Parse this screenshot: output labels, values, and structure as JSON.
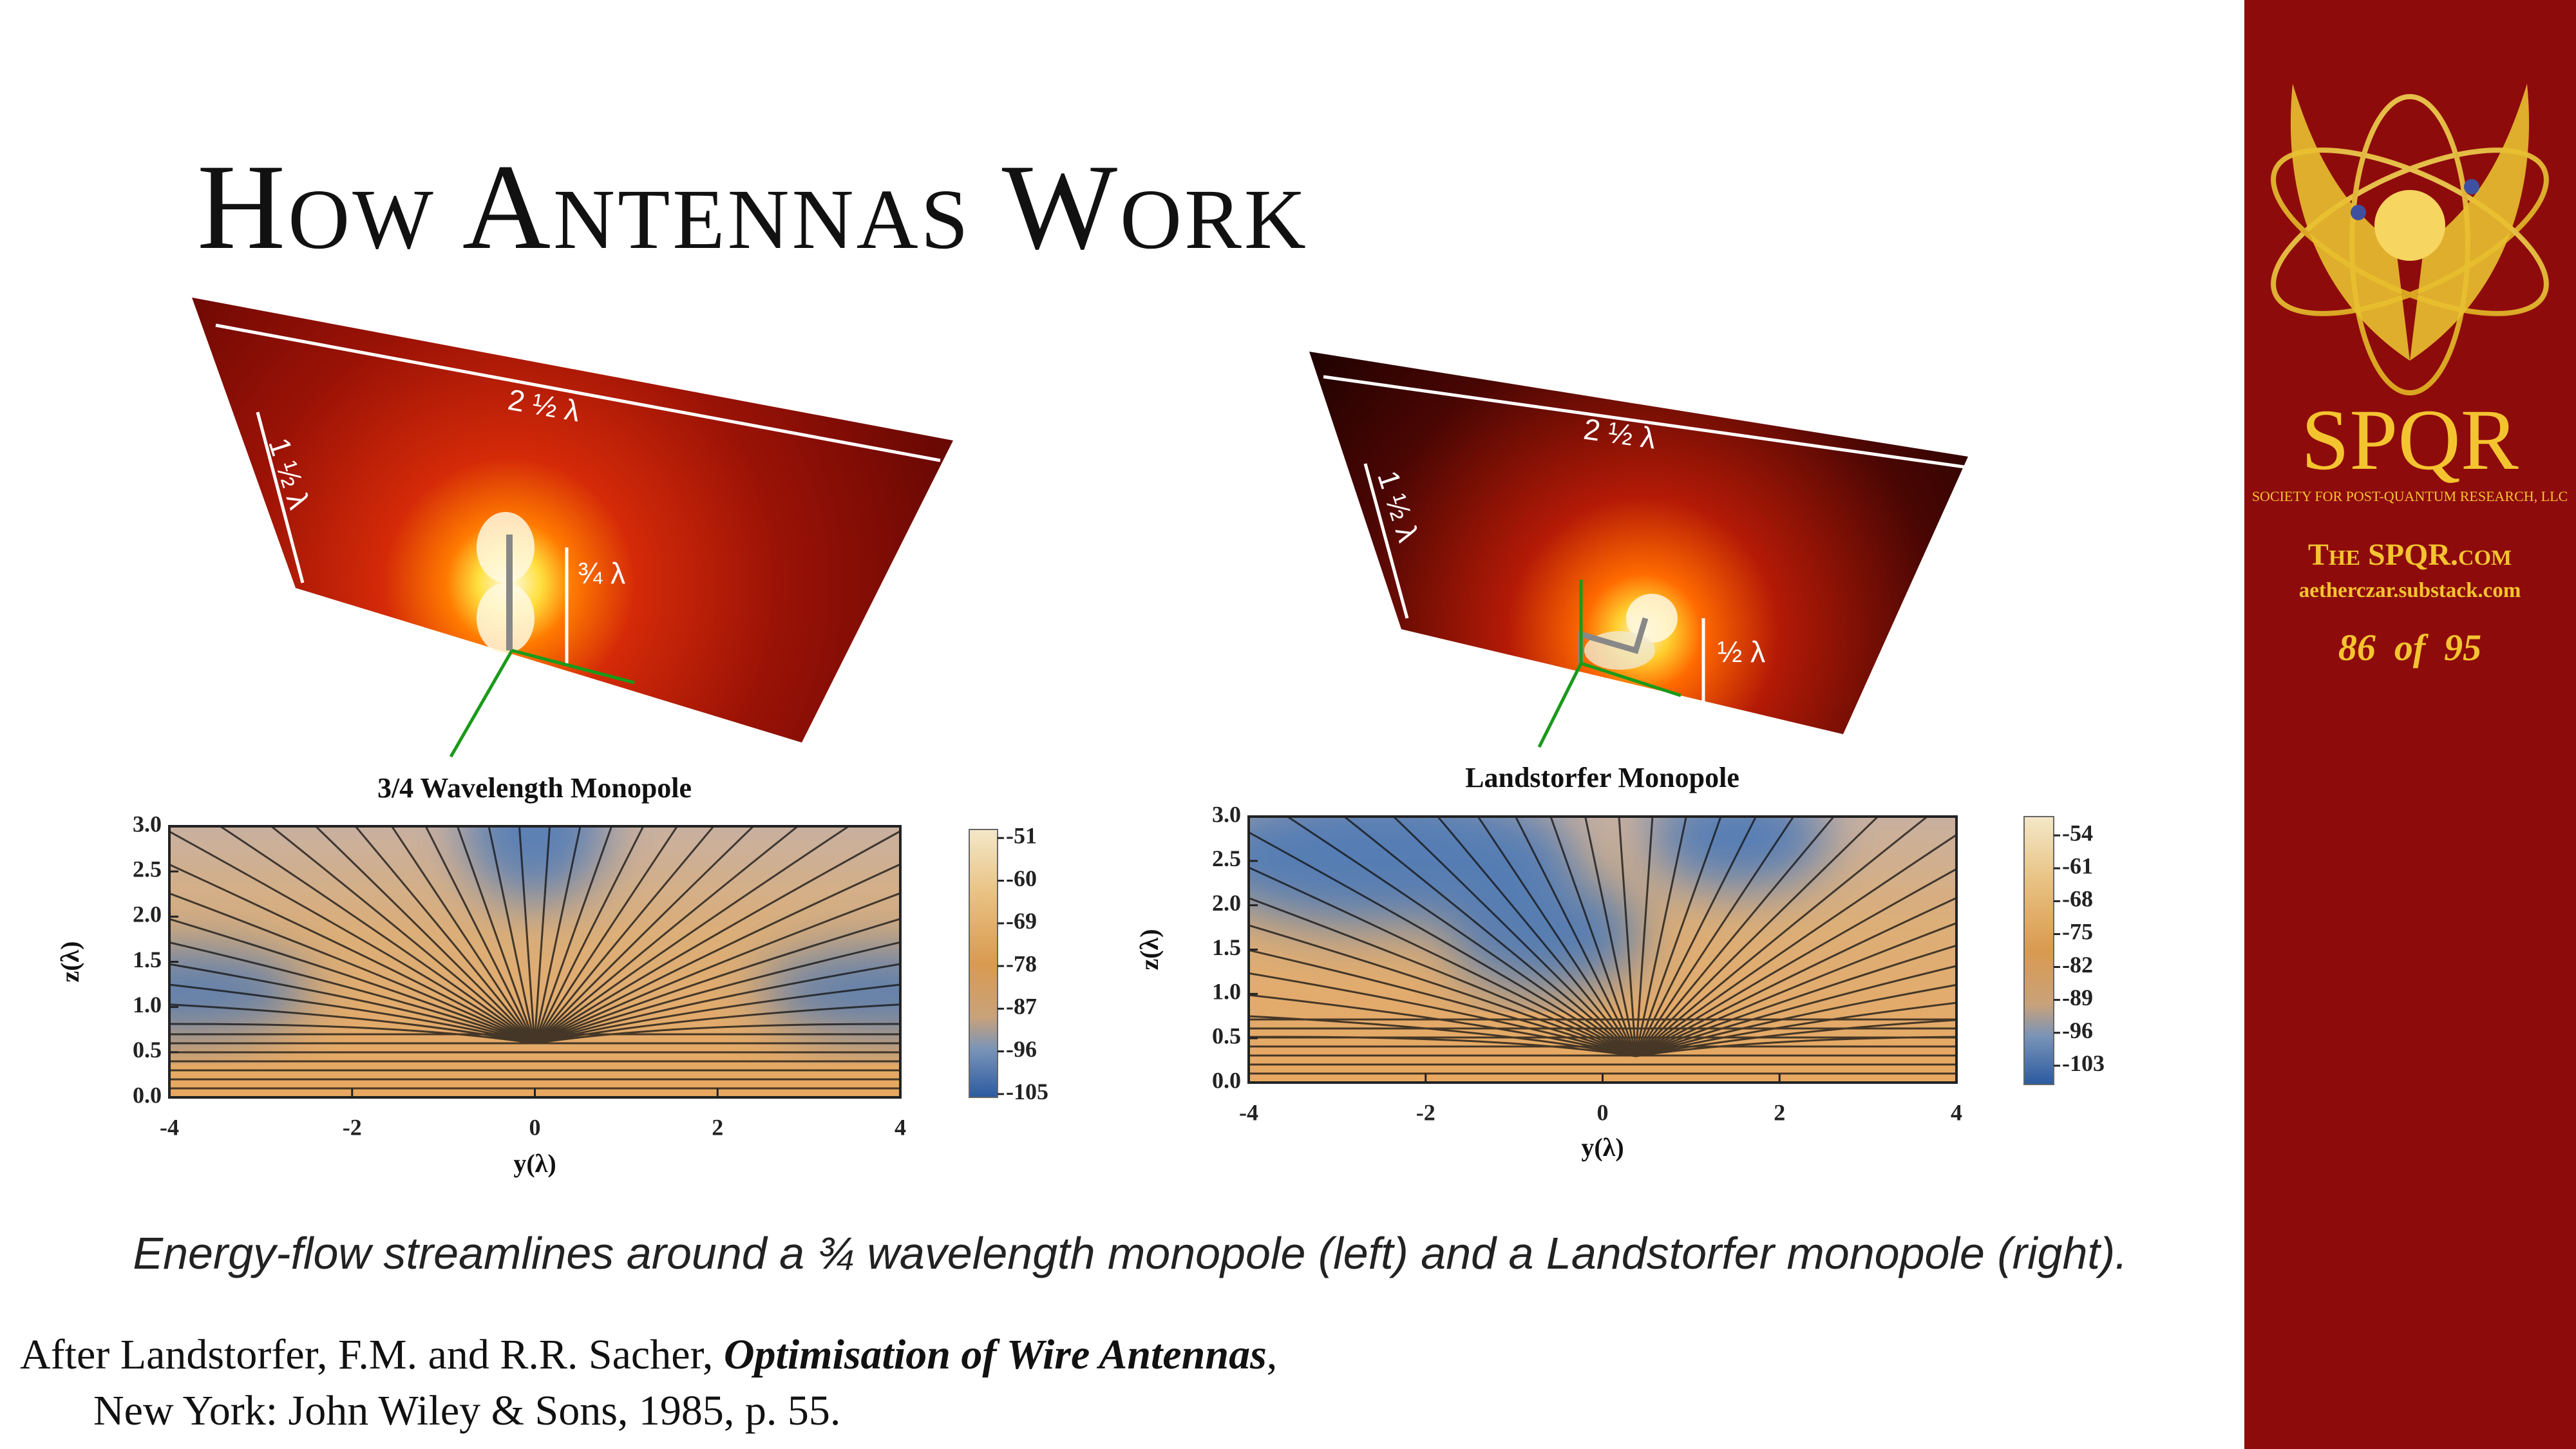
{
  "title": "How Antennas Work",
  "figures": [
    {
      "plane_labels": {
        "width": "2 ½ λ",
        "depth": "1 ½ λ",
        "height": "¾ λ"
      },
      "plot_title": "3/4 Wavelength Monopole",
      "xlabel": "y(λ)",
      "ylabel": "z(λ)",
      "xlim": [
        -4,
        4
      ],
      "xticks": [
        -4,
        -2,
        0,
        2,
        4
      ],
      "ylim": [
        0,
        3
      ],
      "yticks": [
        {
          "value": 0,
          "label": "0.0"
        },
        {
          "value": 0.5,
          "label": "0.5"
        },
        {
          "value": 1,
          "label": "1.0"
        },
        {
          "value": 1.5,
          "label": "1.5"
        },
        {
          "value": 2,
          "label": "2.0"
        },
        {
          "value": 2.5,
          "label": "2.5"
        },
        {
          "value": 3,
          "label": "3.0"
        }
      ],
      "clim": [
        -49.2,
        -105.7
      ],
      "cticks": [
        -51,
        -60,
        -69,
        -78,
        -87,
        -96,
        -105
      ]
    },
    {
      "plane_labels": {
        "width": "2 ½ λ",
        "depth": "1 ½ λ",
        "height": "½ λ"
      },
      "plot_title": "Landstorfer Monopole",
      "xlabel": "y(λ)",
      "ylabel": "z(λ)",
      "xlim": [
        -4,
        4
      ],
      "xticks": [
        -4,
        -2,
        0,
        2,
        4
      ],
      "ylim": [
        0,
        3
      ],
      "yticks": [
        {
          "value": 0,
          "label": "0.0"
        },
        {
          "value": 0.5,
          "label": "0.5"
        },
        {
          "value": 1,
          "label": "1.0"
        },
        {
          "value": 1.5,
          "label": "1.5"
        },
        {
          "value": 2,
          "label": "2.0"
        },
        {
          "value": 2.5,
          "label": "2.5"
        },
        {
          "value": 3,
          "label": "3.0"
        }
      ],
      "clim": [
        -50,
        -107
      ],
      "cticks": [
        -54,
        -61,
        -68,
        -75,
        -82,
        -89,
        -96,
        -103
      ]
    }
  ],
  "caption": "Energy-flow streamlines around a ¾ wavelength monopole (left) and a Landstorfer monopole (right).",
  "citation": {
    "prefix": "After Landstorfer, F.M. and R.R. Sacher, ",
    "book_title": "Optimisation of  Wire Antennas",
    "suffix": ",",
    "line2": "New York: John Wiley & Sons, 1985, p. 55."
  },
  "sidebar": {
    "logo_text": "SPQR",
    "org": "SOCIETY FOR POST-QUANTUM RESEARCH, LLC",
    "site": "The SPQR.com",
    "substack": "aetherczar.substack.com",
    "page": "86  of  95"
  }
}
